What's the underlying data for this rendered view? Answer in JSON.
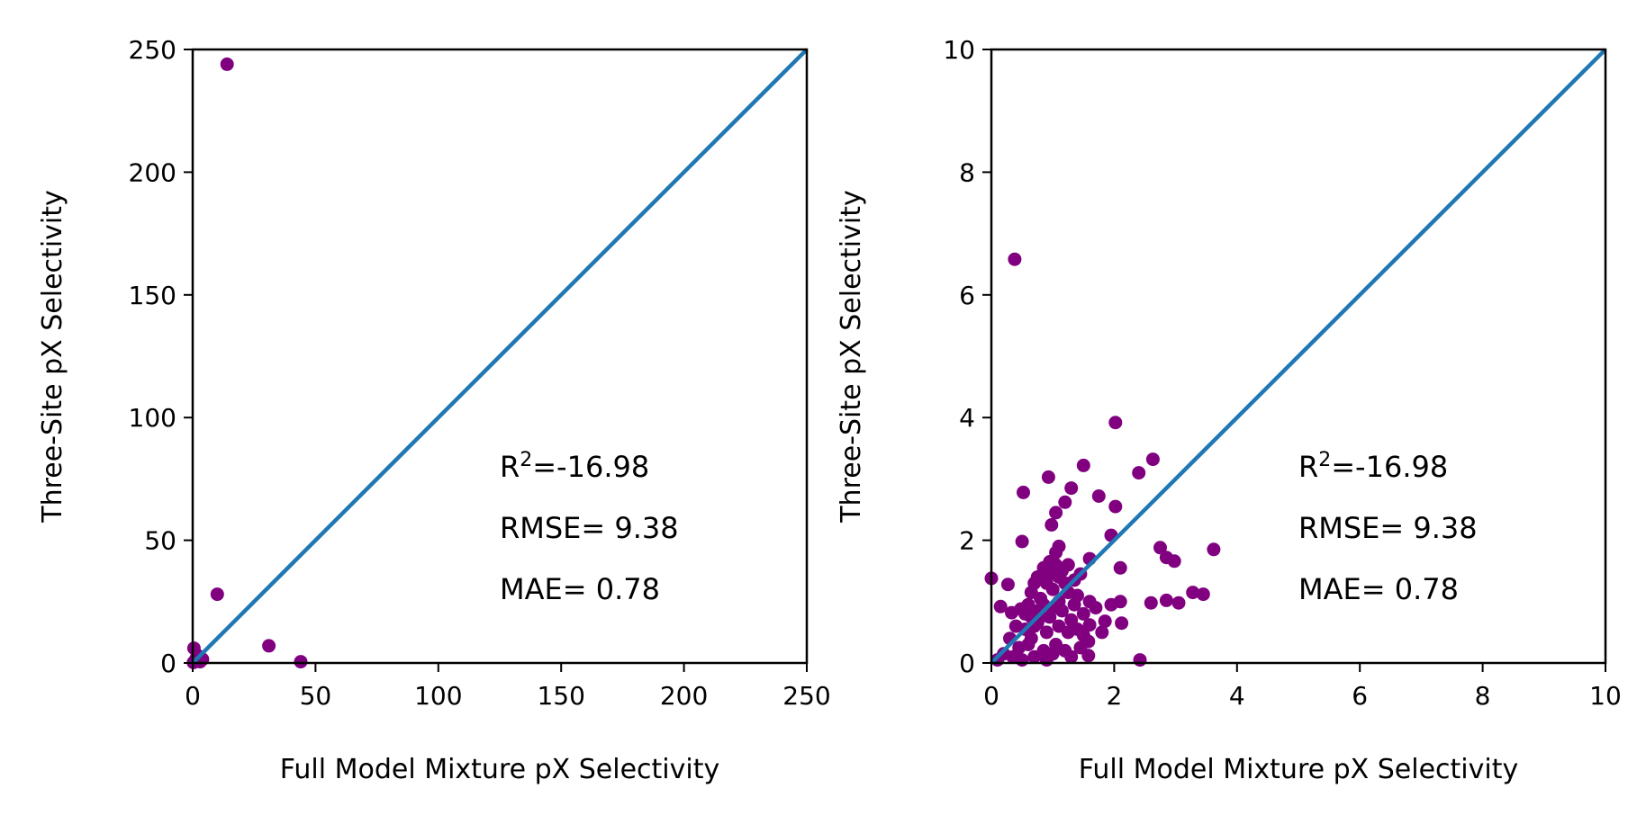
{
  "chart_data": [
    {
      "type": "scatter",
      "xlabel": "Full Model Mixture pX Selectivity",
      "ylabel": "Three-Site pX Selectivity",
      "xlim": [
        0,
        250
      ],
      "ylim": [
        0,
        250
      ],
      "xticks": [
        "0",
        "50",
        "100",
        "150",
        "200",
        "250"
      ],
      "yticks": [
        "0",
        "50",
        "100",
        "150",
        "200",
        "250"
      ],
      "grid": false,
      "point_color": "#800080",
      "line_color": "#1f77b4",
      "reference_line": "y = x",
      "stats": {
        "r2_prefix": "R",
        "r2_sup": "2",
        "r2_value": "=-16.98",
        "rmse": "RMSE= 9.38",
        "mae": "MAE= 0.78"
      },
      "points": [
        [
          14,
          244
        ],
        [
          10,
          28
        ],
        [
          31,
          7
        ],
        [
          44,
          0.5
        ],
        [
          0.5,
          6
        ],
        [
          2,
          3
        ],
        [
          4,
          1.5
        ],
        [
          1,
          1
        ],
        [
          0.8,
          0.5
        ],
        [
          1.5,
          2
        ],
        [
          3,
          0.5
        ],
        [
          0.3,
          0.2
        ],
        [
          2.2,
          0.8
        ]
      ]
    },
    {
      "type": "scatter",
      "xlabel": "Full Model Mixture pX Selectivity",
      "ylabel": "Three-Site pX Selectivity",
      "xlim": [
        0,
        10
      ],
      "ylim": [
        0,
        10
      ],
      "xticks": [
        "0",
        "2",
        "4",
        "6",
        "8",
        "10"
      ],
      "yticks": [
        "0",
        "2",
        "4",
        "6",
        "8",
        "10"
      ],
      "grid": false,
      "point_color": "#800080",
      "line_color": "#1f77b4",
      "reference_line": "y = x",
      "stats": {
        "r2_prefix": "R",
        "r2_sup": "2",
        "r2_value": "=-16.98",
        "rmse": "RMSE= 9.38",
        "mae": "MAE= 0.78"
      },
      "points": [
        [
          0.38,
          6.58
        ],
        [
          2.02,
          3.92
        ],
        [
          2.63,
          3.32
        ],
        [
          1.5,
          3.22
        ],
        [
          2.4,
          3.1
        ],
        [
          0.93,
          3.03
        ],
        [
          1.3,
          2.85
        ],
        [
          0.52,
          2.78
        ],
        [
          1.75,
          2.72
        ],
        [
          2.02,
          2.55
        ],
        [
          1.2,
          2.62
        ],
        [
          1.05,
          2.45
        ],
        [
          0.98,
          2.25
        ],
        [
          1.95,
          2.08
        ],
        [
          0.5,
          1.98
        ],
        [
          2.1,
          1.55
        ],
        [
          1.6,
          1.7
        ],
        [
          2.75,
          1.88
        ],
        [
          2.85,
          1.72
        ],
        [
          2.98,
          1.66
        ],
        [
          3.62,
          1.85
        ],
        [
          1.1,
          1.9
        ],
        [
          0.7,
          1.3
        ],
        [
          0.27,
          1.28
        ],
        [
          0.0,
          1.38
        ],
        [
          0.15,
          0.92
        ],
        [
          0.48,
          0.88
        ],
        [
          0.33,
          0.82
        ],
        [
          2.1,
          1.0
        ],
        [
          1.95,
          0.95
        ],
        [
          2.6,
          0.98
        ],
        [
          2.85,
          1.02
        ],
        [
          3.05,
          0.98
        ],
        [
          3.28,
          1.15
        ],
        [
          3.45,
          1.12
        ],
        [
          2.12,
          0.65
        ],
        [
          1.6,
          0.62
        ],
        [
          1.85,
          0.68
        ],
        [
          1.5,
          0.45
        ],
        [
          1.58,
          0.35
        ],
        [
          1.58,
          0.12
        ],
        [
          2.42,
          0.05
        ],
        [
          0.55,
          0.55
        ],
        [
          0.65,
          0.4
        ],
        [
          0.75,
          0.65
        ],
        [
          0.85,
          0.2
        ],
        [
          0.95,
          0.75
        ],
        [
          1.05,
          0.3
        ],
        [
          1.15,
          0.85
        ],
        [
          1.25,
          0.5
        ],
        [
          1.35,
          0.95
        ],
        [
          1.45,
          0.25
        ],
        [
          0.6,
          0.95
        ],
        [
          0.7,
          0.1
        ],
        [
          0.8,
          1.05
        ],
        [
          0.9,
          0.5
        ],
        [
          1.0,
          1.2
        ],
        [
          1.1,
          0.6
        ],
        [
          1.2,
          1.3
        ],
        [
          1.3,
          0.7
        ],
        [
          1.4,
          1.1
        ],
        [
          0.3,
          0.4
        ],
        [
          0.4,
          0.6
        ],
        [
          0.2,
          0.15
        ],
        [
          0.1,
          0.05
        ],
        [
          0.45,
          0.25
        ],
        [
          0.55,
          0.8
        ],
        [
          0.65,
          1.15
        ],
        [
          0.75,
          1.4
        ],
        [
          0.85,
          1.55
        ],
        [
          0.95,
          1.65
        ],
        [
          1.05,
          1.8
        ],
        [
          1.15,
          1.5
        ],
        [
          1.25,
          1.6
        ],
        [
          1.35,
          1.35
        ],
        [
          1.45,
          1.45
        ],
        [
          0.9,
          1.3
        ],
        [
          1.0,
          0.9
        ],
        [
          1.1,
          1.0
        ],
        [
          0.8,
          0.75
        ],
        [
          0.7,
          0.6
        ],
        [
          0.6,
          0.3
        ],
        [
          1.2,
          0.2
        ],
        [
          1.3,
          0.1
        ],
        [
          1.4,
          0.55
        ],
        [
          1.5,
          0.8
        ],
        [
          1.6,
          1.0
        ],
        [
          1.7,
          0.9
        ],
        [
          1.8,
          0.5
        ],
        [
          0.35,
          0.1
        ],
        [
          0.5,
          0.05
        ],
        [
          0.9,
          0.05
        ],
        [
          1.0,
          0.15
        ],
        [
          1.1,
          1.4
        ],
        [
          0.85,
          0.95
        ],
        [
          1.25,
          1.15
        ],
        [
          0.95,
          1.45
        ],
        [
          1.05,
          1.6
        ],
        [
          0.75,
          0.85
        ],
        [
          0.65,
          0.75
        ]
      ]
    }
  ]
}
